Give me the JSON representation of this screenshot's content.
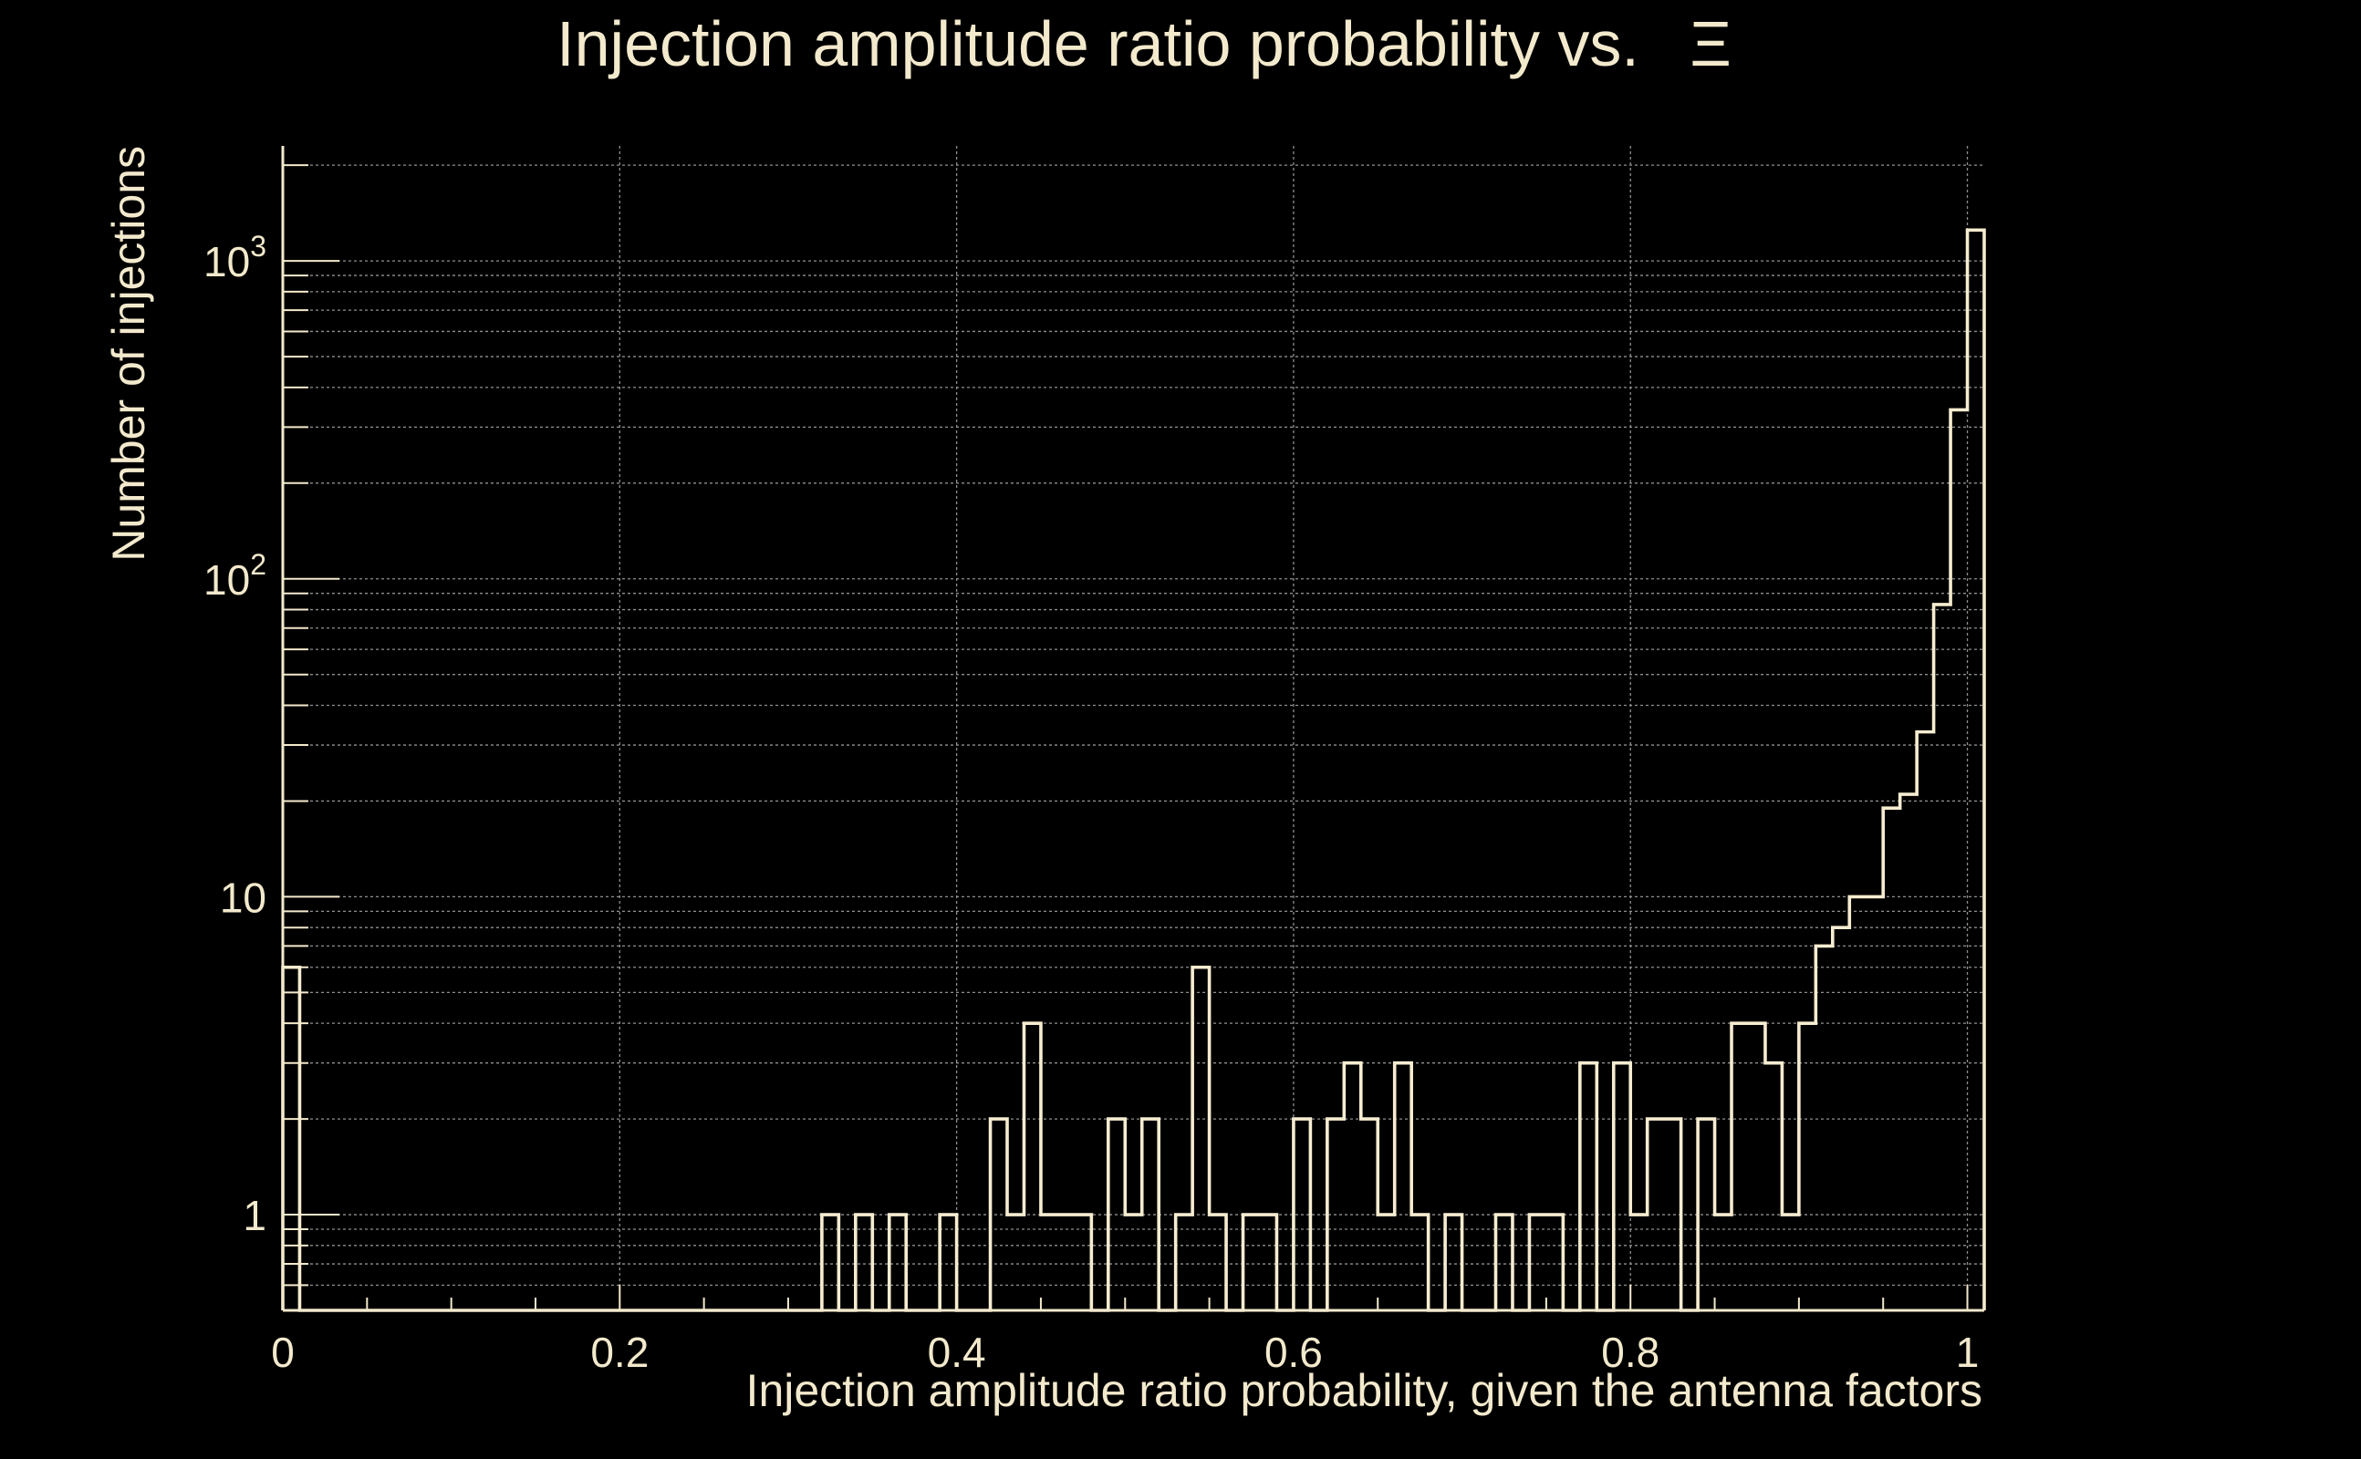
{
  "chart_data": {
    "type": "bar",
    "title": "Injection amplitude ratio probability vs.",
    "title_symbol": "Ξ",
    "xlabel": "Injection amplitude ratio probability, given the antenna factors",
    "ylabel": "Number of injections",
    "xlim": [
      0,
      1.01
    ],
    "ylim": [
      0.5,
      2300
    ],
    "y_scale": "log",
    "grid": true,
    "bin_width": 0.01,
    "x_ticks": [
      {
        "value": 0,
        "label": "0"
      },
      {
        "value": 0.2,
        "label": "0.2"
      },
      {
        "value": 0.4,
        "label": "0.4"
      },
      {
        "value": 0.6,
        "label": "0.6"
      },
      {
        "value": 0.8,
        "label": "0.8"
      },
      {
        "value": 1,
        "label": "1"
      }
    ],
    "y_ticks": [
      {
        "value": 1,
        "base": "1",
        "exp": ""
      },
      {
        "value": 10,
        "base": "10",
        "exp": ""
      },
      {
        "value": 100,
        "base": "10",
        "exp": "2"
      },
      {
        "value": 1000,
        "base": "10",
        "exp": "3"
      }
    ],
    "values": [
      6,
      0,
      0,
      0,
      0,
      0,
      0,
      0,
      0,
      0,
      0,
      0,
      0,
      0,
      0,
      0,
      0,
      0,
      0,
      0,
      0,
      0,
      0,
      0,
      0,
      0,
      0,
      0,
      0,
      0,
      0,
      0,
      1,
      0,
      1,
      0,
      1,
      0,
      0,
      1,
      0,
      0,
      2,
      1,
      4,
      1,
      1,
      1,
      0,
      2,
      1,
      2,
      0,
      1,
      6,
      1,
      0,
      1,
      1,
      0,
      2,
      0,
      2,
      3,
      2,
      1,
      3,
      1,
      0,
      1,
      0,
      0,
      1,
      0,
      1,
      1,
      0,
      3,
      0,
      3,
      1,
      2,
      2,
      0,
      2,
      1,
      4,
      4,
      3,
      1,
      4,
      7,
      8,
      10,
      10,
      19,
      21,
      33,
      83,
      340,
      1250
    ],
    "stroke_color": "#f6ecd0",
    "background_color": "#000000"
  }
}
